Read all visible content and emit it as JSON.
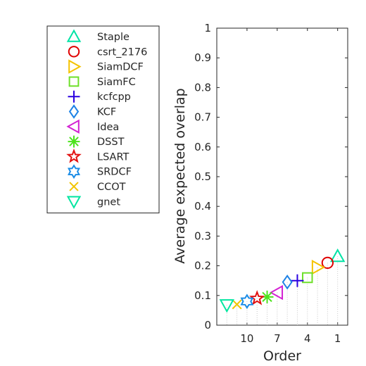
{
  "chart_data": {
    "type": "scatter",
    "xlabel": "Order",
    "ylabel": "Average expected overlap",
    "xlim": [
      0,
      13
    ],
    "ylim": [
      0,
      1
    ],
    "x_reversed": true,
    "yticks": [
      0,
      0.1,
      0.2,
      0.3,
      0.4,
      0.5,
      0.6,
      0.7,
      0.8,
      0.9,
      1
    ],
    "ytick_labels": [
      "0",
      "0.1",
      "0.2",
      "0.3",
      "0.4",
      "0.5",
      "0.6",
      "0.7",
      "0.8",
      "0.9",
      "1"
    ],
    "xticks": [
      1,
      4,
      7,
      10
    ],
    "xtick_labels": [
      "1",
      "4",
      "7",
      "10"
    ],
    "grid": false,
    "legend_position": "left",
    "series": [
      {
        "name": "Staple",
        "marker": "triangle-up",
        "color": "#00e3a5",
        "x": 1,
        "y": 0.232
      },
      {
        "name": "csrt_2176",
        "marker": "circle",
        "color": "#e00000",
        "x": 2,
        "y": 0.21
      },
      {
        "name": "SiamDCF",
        "marker": "triangle-right",
        "color": "#f5c300",
        "x": 3,
        "y": 0.195
      },
      {
        "name": "SiamFC",
        "marker": "square",
        "color": "#6ee02a",
        "x": 4,
        "y": 0.16
      },
      {
        "name": "kcfcpp",
        "marker": "plus",
        "color": "#2a00e0",
        "x": 5,
        "y": 0.15
      },
      {
        "name": "KCF",
        "marker": "diamond",
        "color": "#1e82e6",
        "x": 6,
        "y": 0.145
      },
      {
        "name": "Idea",
        "marker": "triangle-left",
        "color": "#d321d3",
        "x": 7,
        "y": 0.11
      },
      {
        "name": "DSST",
        "marker": "asterisk",
        "color": "#4ce31c",
        "x": 8,
        "y": 0.095
      },
      {
        "name": "LSART",
        "marker": "pentagram",
        "color": "#e21010",
        "x": 9,
        "y": 0.09
      },
      {
        "name": "SRDCF",
        "marker": "hexagram",
        "color": "#1a8ce6",
        "x": 10,
        "y": 0.08
      },
      {
        "name": "CCOT",
        "marker": "x",
        "color": "#f2c500",
        "x": 11,
        "y": 0.07
      },
      {
        "name": "gnet",
        "marker": "triangle-down",
        "color": "#00e6a0",
        "x": 12,
        "y": 0.068
      }
    ]
  }
}
